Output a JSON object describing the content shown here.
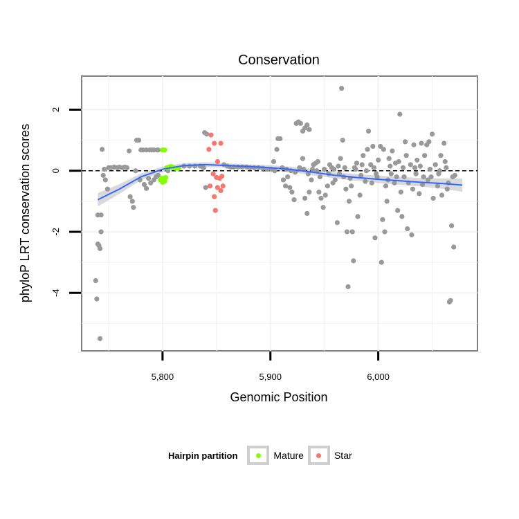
{
  "chart_data": {
    "type": "scatter",
    "title": "Conservation",
    "xlabel": "Genomic Position",
    "ylabel": "phyloP LRT conservation scores",
    "xlim": [
      5725,
      6092
    ],
    "ylim": [
      -5.9,
      3.1
    ],
    "x_ticks": [
      5800,
      5900,
      6000
    ],
    "x_tick_labels": [
      "5,800",
      "5,900",
      "6,000"
    ],
    "y_ticks": [
      -4,
      -2,
      0,
      2
    ],
    "y_tick_labels": [
      "-4",
      "-2",
      "0",
      "2"
    ],
    "reference_line_y": 0,
    "grid": true,
    "legend": {
      "title": "Hairpin partition",
      "position": "bottom",
      "entries": [
        {
          "label": "Mature",
          "color": "#7fff00"
        },
        {
          "label": "Star",
          "color": "#f8766d"
        }
      ]
    },
    "colors": {
      "other": "#999999",
      "mature": "#7fff00",
      "star": "#f8766d",
      "smooth": "#3366ff",
      "band": "#cccccc"
    },
    "smooth": {
      "x": [
        5740,
        5760,
        5780,
        5800,
        5820,
        5840,
        5860,
        5880,
        5900,
        5920,
        5940,
        5960,
        5980,
        6000,
        6020,
        6040,
        6060,
        6078
      ],
      "y": [
        -0.95,
        -0.6,
        -0.2,
        0.05,
        0.17,
        0.2,
        0.17,
        0.14,
        0.1,
        0.04,
        -0.05,
        -0.15,
        -0.22,
        -0.28,
        -0.33,
        -0.38,
        -0.42,
        -0.47
      ],
      "se": [
        0.22,
        0.16,
        0.11,
        0.09,
        0.08,
        0.08,
        0.07,
        0.07,
        0.08,
        0.09,
        0.1,
        0.1,
        0.11,
        0.12,
        0.13,
        0.14,
        0.17,
        0.22
      ]
    },
    "series": [
      {
        "name": "Mature",
        "group": "mature",
        "points": [
          [
            5800,
            0.68
          ],
          [
            5802,
            0.68
          ],
          [
            5799,
            -0.25
          ],
          [
            5801,
            -0.25
          ],
          [
            5803,
            -0.22
          ],
          [
            5800,
            -0.38
          ],
          [
            5802,
            -0.35
          ],
          [
            5798,
            -0.3
          ],
          [
            5804,
            0.1
          ],
          [
            5806,
            0.12
          ],
          [
            5808,
            0.14
          ],
          [
            5810,
            0.1
          ],
          [
            5812,
            0.08
          ],
          [
            5815,
            0.08
          ]
        ]
      },
      {
        "name": "Star",
        "group": "star",
        "points": [
          [
            5843,
            0.7
          ],
          [
            5845,
            1.17
          ],
          [
            5848,
            0.9
          ],
          [
            5854,
            0.9
          ],
          [
            5851,
            0.3
          ],
          [
            5847,
            -0.1
          ],
          [
            5850,
            -0.22
          ],
          [
            5853,
            -0.25
          ],
          [
            5855,
            -0.18
          ],
          [
            5856,
            -0.5
          ],
          [
            5851,
            -0.55
          ],
          [
            5844,
            -0.5
          ],
          [
            5848,
            -0.85
          ],
          [
            5849,
            -1.3
          ],
          [
            5854,
            -0.65
          ]
        ]
      },
      {
        "name": "",
        "group": "other",
        "points": [
          [
            5738,
            -3.6
          ],
          [
            5739,
            -4.2
          ],
          [
            5740,
            -1.45
          ],
          [
            5740,
            -2.4
          ],
          [
            5741,
            -2.45
          ],
          [
            5742,
            -2.55
          ],
          [
            5743,
            -2.0
          ],
          [
            5743,
            -1.45
          ],
          [
            5742,
            -5.5
          ],
          [
            5744,
            0.7
          ],
          [
            5746,
            0.05
          ],
          [
            5745,
            -0.15
          ],
          [
            5747,
            -0.3
          ],
          [
            5749,
            -0.6
          ],
          [
            5750,
            0.1
          ],
          [
            5752,
            0.1
          ],
          [
            5755,
            0.12
          ],
          [
            5758,
            0.1
          ],
          [
            5760,
            0.12
          ],
          [
            5763,
            0.1
          ],
          [
            5765,
            0.12
          ],
          [
            5767,
            0.1
          ],
          [
            5769,
            0.65
          ],
          [
            5770,
            -0.85
          ],
          [
            5772,
            -1.0
          ],
          [
            5773,
            -1.2
          ],
          [
            5775,
            0.0
          ],
          [
            5776,
            1.0
          ],
          [
            5778,
            1.0
          ],
          [
            5780,
            0.68
          ],
          [
            5782,
            0.68
          ],
          [
            5785,
            0.68
          ],
          [
            5788,
            0.68
          ],
          [
            5790,
            0.68
          ],
          [
            5792,
            0.68
          ],
          [
            5795,
            0.68
          ],
          [
            5796,
            0.68
          ],
          [
            5779,
            -0.3
          ],
          [
            5783,
            -0.45
          ],
          [
            5785,
            -0.58
          ],
          [
            5787,
            -0.25
          ],
          [
            5789,
            -0.4
          ],
          [
            5792,
            -0.3
          ],
          [
            5794,
            -0.2
          ],
          [
            5796,
            -0.15
          ],
          [
            5805,
            0.0
          ],
          [
            5820,
            0.15
          ],
          [
            5825,
            0.15
          ],
          [
            5830,
            0.15
          ],
          [
            5835,
            0.15
          ],
          [
            5839,
            1.25
          ],
          [
            5841,
            1.2
          ],
          [
            5840,
            -0.55
          ],
          [
            5838,
            0.1
          ],
          [
            5857,
            0.2
          ],
          [
            5860,
            0.15
          ],
          [
            5863,
            0.12
          ],
          [
            5866,
            0.12
          ],
          [
            5870,
            0.12
          ],
          [
            5874,
            0.12
          ],
          [
            5878,
            0.12
          ],
          [
            5881,
            0.1
          ],
          [
            5885,
            0.1
          ],
          [
            5889,
            0.1
          ],
          [
            5893,
            0.08
          ],
          [
            5897,
            0.05
          ],
          [
            5901,
            0.05
          ],
          [
            5904,
            0.0
          ],
          [
            5906,
            0.7
          ],
          [
            5907,
            1.05
          ],
          [
            5909,
            1.05
          ],
          [
            5903,
            0.3
          ],
          [
            5912,
            -0.3
          ],
          [
            5914,
            -0.5
          ],
          [
            5916,
            -0.2
          ],
          [
            5918,
            -0.55
          ],
          [
            5920,
            -0.7
          ],
          [
            5922,
            -0.95
          ],
          [
            5924,
            1.55
          ],
          [
            5926,
            1.6
          ],
          [
            5928,
            1.55
          ],
          [
            5930,
            1.3
          ],
          [
            5932,
            1.4
          ],
          [
            5934,
            1.5
          ],
          [
            5936,
            1.35
          ],
          [
            5930,
            0.4
          ],
          [
            5932,
            -0.9
          ],
          [
            5934,
            -1.4
          ],
          [
            5936,
            -0.7
          ],
          [
            5938,
            -0.3
          ],
          [
            5940,
            0.2
          ],
          [
            5942,
            0.25
          ],
          [
            5944,
            0.3
          ],
          [
            5945,
            -0.7
          ],
          [
            5947,
            -0.9
          ],
          [
            5949,
            -1.2
          ],
          [
            5951,
            -0.8
          ],
          [
            5953,
            -0.5
          ],
          [
            5955,
            0.2
          ],
          [
            5957,
            0.1
          ],
          [
            5958,
            -0.4
          ],
          [
            5960,
            -0.3
          ],
          [
            5962,
            -1.7
          ],
          [
            5963,
            0.15
          ],
          [
            5965,
            0.4
          ],
          [
            5966,
            2.7
          ],
          [
            5967,
            1.0
          ],
          [
            5968,
            -0.2
          ],
          [
            5970,
            -0.6
          ],
          [
            5971,
            -2.0
          ],
          [
            5972,
            -3.8
          ],
          [
            5973,
            -1.0
          ],
          [
            5975,
            -0.5
          ],
          [
            5976,
            -2.0
          ],
          [
            5977,
            -2.95
          ],
          [
            5978,
            0.1
          ],
          [
            5980,
            0.25
          ],
          [
            5981,
            -1.5
          ],
          [
            5983,
            -0.8
          ],
          [
            5985,
            0.2
          ],
          [
            5986,
            0.5
          ],
          [
            5988,
            -0.35
          ],
          [
            5990,
            0.7
          ],
          [
            5991,
            1.3
          ],
          [
            5993,
            0.2
          ],
          [
            5995,
            0.8
          ],
          [
            5996,
            0.1
          ],
          [
            5997,
            -2.2
          ],
          [
            5999,
            -0.2
          ],
          [
            6000,
            0.35
          ],
          [
            6002,
            0.8
          ],
          [
            6003,
            -3.0
          ],
          [
            6004,
            -1.6
          ],
          [
            6005,
            0.7
          ],
          [
            6006,
            -2.0
          ],
          [
            6007,
            -0.5
          ],
          [
            6008,
            -1.0
          ],
          [
            6010,
            0.4
          ],
          [
            6012,
            -0.1
          ],
          [
            6013,
            0.65
          ],
          [
            6015,
            -0.4
          ],
          [
            6016,
            0.25
          ],
          [
            6018,
            -1.3
          ],
          [
            6019,
            0.3
          ],
          [
            6020,
            1.85
          ],
          [
            6021,
            -0.7
          ],
          [
            6022,
            -1.5
          ],
          [
            6024,
            -0.2
          ],
          [
            6025,
            0.95
          ],
          [
            6026,
            0.5
          ],
          [
            6027,
            -1.9
          ],
          [
            6028,
            -0.4
          ],
          [
            6030,
            0.2
          ],
          [
            6031,
            -2.1
          ],
          [
            6032,
            -0.6
          ],
          [
            6033,
            0.85
          ],
          [
            6035,
            -0.1
          ],
          [
            6036,
            0.35
          ],
          [
            6038,
            -0.75
          ],
          [
            6039,
            0.15
          ],
          [
            6040,
            0.9
          ],
          [
            6042,
            -0.2
          ],
          [
            6043,
            0.5
          ],
          [
            6045,
            0.85
          ],
          [
            6046,
            -0.3
          ],
          [
            6047,
            0.95
          ],
          [
            6049,
            -0.2
          ],
          [
            6050,
            1.2
          ],
          [
            6051,
            -0.9
          ],
          [
            6053,
            0.2
          ],
          [
            6055,
            -0.5
          ],
          [
            6056,
            -0.1
          ],
          [
            6058,
            0.5
          ],
          [
            6059,
            -0.8
          ],
          [
            6061,
            0.9
          ],
          [
            6062,
            0.3
          ],
          [
            6063,
            0.1
          ],
          [
            6065,
            -0.4
          ],
          [
            6066,
            -4.3
          ],
          [
            6067,
            -4.25
          ],
          [
            6068,
            -1.8
          ],
          [
            6069,
            -0.2
          ],
          [
            6070,
            -2.5
          ],
          [
            6071,
            -0.15
          ],
          [
            6064,
            -0.6
          ],
          [
            6057,
            0.0
          ],
          [
            6048,
            0.05
          ],
          [
            6041,
            -0.45
          ],
          [
            6034,
            0.1
          ],
          [
            6023,
            0.1
          ],
          [
            6017,
            -0.2
          ],
          [
            6011,
            0.15
          ],
          [
            6009,
            -0.3
          ],
          [
            5998,
            -0.1
          ],
          [
            5994,
            -0.4
          ],
          [
            5989,
            0.0
          ],
          [
            5984,
            -0.15
          ],
          [
            5979,
            0.05
          ],
          [
            5974,
            -0.25
          ],
          [
            5969,
            0.1
          ],
          [
            5964,
            -0.1
          ],
          [
            5959,
            0.05
          ],
          [
            5954,
            -0.1
          ],
          [
            5950,
            0.05
          ],
          [
            5946,
            -0.2
          ],
          [
            5943,
            0.0
          ],
          [
            5939,
            0.05
          ],
          [
            5935,
            -0.1
          ],
          [
            5931,
            0.05
          ],
          [
            5927,
            0.1
          ],
          [
            5923,
            -0.05
          ],
          [
            5919,
            0.0
          ],
          [
            5915,
            0.05
          ],
          [
            5911,
            0.1
          ]
        ]
      }
    ]
  }
}
